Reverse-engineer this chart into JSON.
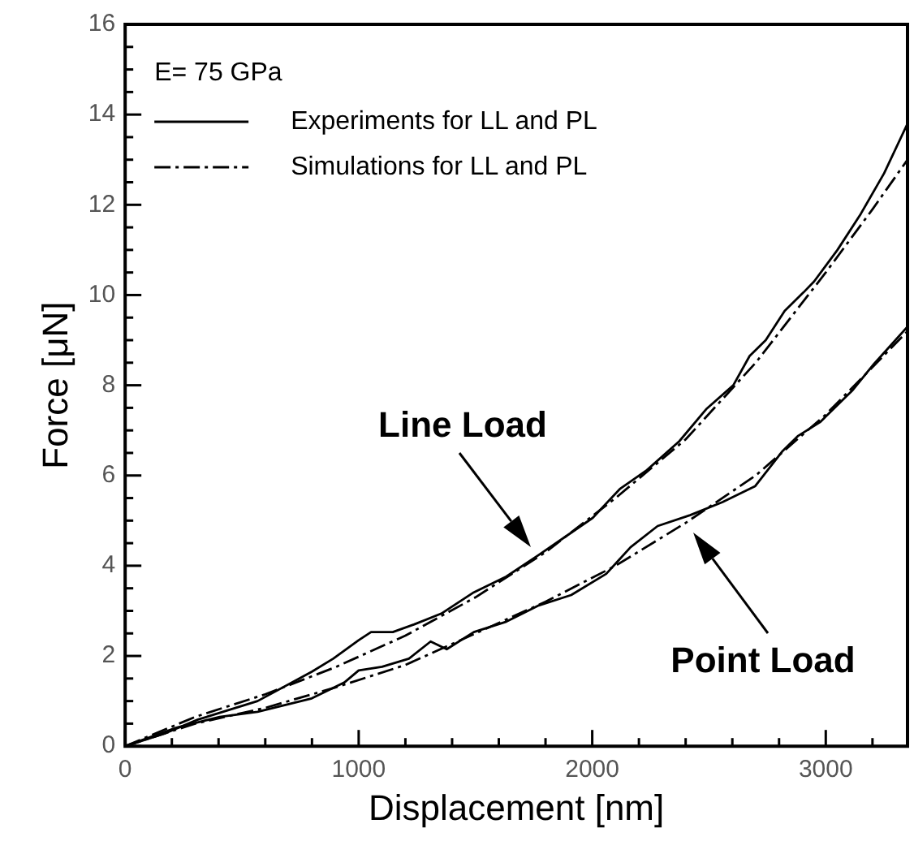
{
  "chart_data": {
    "type": "line",
    "xlabel": "Displacement [nm]",
    "ylabel": "Force [μN]",
    "legend_title": "E= 75 GPa",
    "legend": "top left",
    "xlim": [
      0,
      3350
    ],
    "ylim": [
      0,
      16
    ],
    "xticks": [
      0,
      {
        "value": 200,
        "label": null
      },
      {
        "value": 400,
        "label": null
      },
      {
        "value": 600,
        "label": null
      },
      {
        "value": 800,
        "label": null
      },
      1000,
      {
        "value": 1200,
        "label": null
      },
      {
        "value": 1400,
        "label": null
      },
      {
        "value": 1600,
        "label": null
      },
      {
        "value": 1800,
        "label": null
      },
      2000,
      {
        "value": 2200,
        "label": null
      },
      {
        "value": 2400,
        "label": null
      },
      {
        "value": 2600,
        "label": null
      },
      {
        "value": 2800,
        "label": null
      },
      3000,
      {
        "value": 3200,
        "label": null
      }
    ],
    "yticks": [
      0,
      {
        "value": 0.5,
        "label": null
      },
      {
        "value": 1,
        "label": null
      },
      {
        "value": 1.5,
        "label": null
      },
      2,
      {
        "value": 2.5,
        "label": null
      },
      {
        "value": 3,
        "label": null
      },
      {
        "value": 3.5,
        "label": null
      },
      4,
      {
        "value": 4.5,
        "label": null
      },
      {
        "value": 5,
        "label": null
      },
      {
        "value": 5.5,
        "label": null
      },
      6,
      {
        "value": 6.5,
        "label": null
      },
      {
        "value": 7,
        "label": null
      },
      {
        "value": 7.5,
        "label": null
      },
      8,
      {
        "value": 8.5,
        "label": null
      },
      {
        "value": 9,
        "label": null
      },
      {
        "value": 9.5,
        "label": null
      },
      10,
      {
        "value": 10.5,
        "label": null
      },
      {
        "value": 11,
        "label": null
      },
      {
        "value": 11.5,
        "label": null
      },
      12,
      {
        "value": 12.5,
        "label": null
      },
      {
        "value": 13,
        "label": null
      },
      {
        "value": 13.5,
        "label": null
      },
      14,
      {
        "value": 14.5,
        "label": null
      },
      {
        "value": 15,
        "label": null
      },
      {
        "value": 15.5,
        "label": null
      },
      16
    ],
    "series": [
      {
        "name": "Experiments for LL and PL",
        "color": "#000000",
        "line_style": "solid",
        "x": [
          0,
          174,
          312,
          567,
          799,
          891,
          1000,
          1053,
          1146,
          1238,
          1354,
          1493,
          1632,
          1771,
          1887,
          2002,
          2118,
          2234,
          2373,
          2488,
          2604,
          2674,
          2743,
          2824,
          2905,
          2950,
          3050,
          3150,
          3250,
          3350
        ],
        "values": [
          0,
          0.29,
          0.59,
          1.0,
          1.65,
          1.94,
          2.35,
          2.53,
          2.53,
          2.7,
          2.94,
          3.41,
          3.76,
          4.24,
          4.65,
          5.06,
          5.7,
          6.12,
          6.76,
          7.47,
          8.0,
          8.65,
          9.0,
          9.65,
          10.06,
          10.3,
          11.0,
          11.8,
          12.7,
          13.8
        ]
      },
      {
        "name": "Simulations for LL and PL",
        "color": "#000000",
        "line_style": "dashed",
        "x": [
          0,
          300,
          600,
          900,
          1200,
          1500,
          1800,
          2100,
          2400,
          2700,
          3000,
          3200,
          3350
        ],
        "values": [
          0,
          0.65,
          1.15,
          1.75,
          2.45,
          3.3,
          4.3,
          5.5,
          6.8,
          8.5,
          10.5,
          11.9,
          13.0
        ]
      },
      {
        "color": "#000000",
        "line_style": "solid",
        "x": [
          0,
          220,
          405,
          567,
          799,
          938,
          1000,
          1100,
          1215,
          1308,
          1377,
          1493,
          1632,
          1771,
          1910,
          2060,
          2164,
          2280,
          2419,
          2558,
          2697,
          2813,
          2882,
          2975,
          3113,
          3206,
          3350
        ],
        "values": [
          0,
          0.41,
          0.65,
          0.76,
          1.06,
          1.41,
          1.68,
          1.76,
          1.94,
          2.32,
          2.15,
          2.53,
          2.76,
          3.12,
          3.35,
          3.82,
          4.41,
          4.88,
          5.12,
          5.41,
          5.76,
          6.53,
          6.88,
          7.18,
          7.88,
          8.47,
          9.3
        ]
      },
      {
        "color": "#000000",
        "line_style": "dashed",
        "x": [
          0,
          300,
          600,
          900,
          1200,
          1500,
          1800,
          2100,
          2400,
          2700,
          3000,
          3200,
          3350
        ],
        "values": [
          0,
          0.5,
          0.85,
          1.3,
          1.8,
          2.5,
          3.2,
          4.0,
          4.95,
          6.0,
          7.35,
          8.4,
          9.2
        ]
      }
    ],
    "annotations": [
      "Line Load",
      "Point Load"
    ]
  }
}
